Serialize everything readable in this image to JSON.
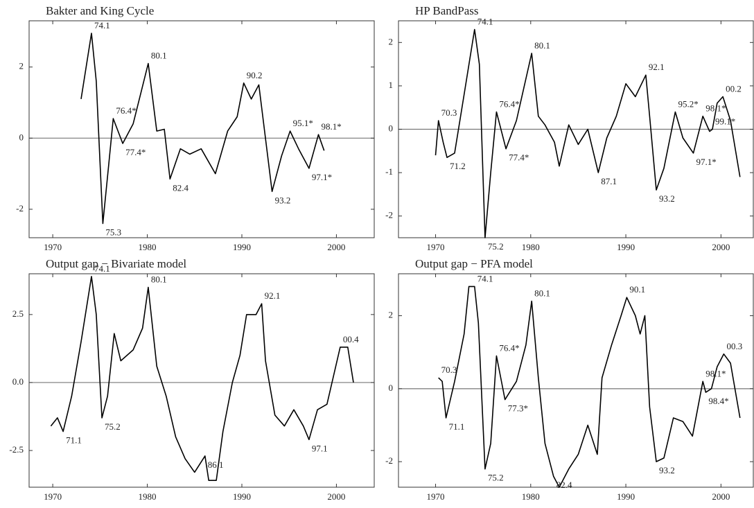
{
  "chart_data": [
    {
      "type": "line",
      "title": "Bakter and King Cycle",
      "color": "#000000",
      "x": [
        1973,
        1974.1,
        1974.6,
        1975.3,
        1975.9,
        1976.4,
        1977.4,
        1978.5,
        1980.1,
        1981,
        1981.8,
        1982.4,
        1983.5,
        1984.5,
        1985.7,
        1987.2,
        1988.5,
        1989.5,
        1990.2,
        1991,
        1991.8,
        1993.2,
        1994.2,
        1995.1,
        1996,
        1997.1,
        1998.1,
        1998.7
      ],
      "values": [
        1.1,
        2.95,
        1.6,
        -2.4,
        -0.8,
        0.55,
        -0.15,
        0.4,
        2.1,
        0.2,
        0.25,
        -1.15,
        -0.3,
        -0.45,
        -0.3,
        -1.0,
        0.2,
        0.6,
        1.55,
        1.1,
        1.5,
        -1.5,
        -0.5,
        0.2,
        -0.3,
        -0.85,
        0.1,
        -0.35
      ],
      "xlim": [
        1967.5,
        2004
      ],
      "ylim": [
        -2.8,
        3.3
      ],
      "xticks": [
        1970,
        1980,
        1990,
        2000
      ],
      "yticks": [
        -2,
        0,
        2
      ],
      "annotations": [
        {
          "text": "74.1",
          "x": 1974.1,
          "y": 2.95
        },
        {
          "text": "75.3",
          "x": 1975.3,
          "y": -2.4
        },
        {
          "text": "76.4*",
          "x": 1976.4,
          "y": 0.55
        },
        {
          "text": "77.4*",
          "x": 1977.4,
          "y": -0.15
        },
        {
          "text": "80.1",
          "x": 1980.1,
          "y": 2.1
        },
        {
          "text": "82.4",
          "x": 1982.4,
          "y": -1.15
        },
        {
          "text": "90.2",
          "x": 1990.2,
          "y": 1.55
        },
        {
          "text": "93.2",
          "x": 1993.2,
          "y": -1.5
        },
        {
          "text": "95.1*",
          "x": 1995.1,
          "y": 0.2
        },
        {
          "text": "97.1*",
          "x": 1997.1,
          "y": -0.85
        },
        {
          "text": "98.1*",
          "x": 1998.1,
          "y": 0.1
        }
      ]
    },
    {
      "type": "line",
      "title": "HP BandPass",
      "color": "#000000",
      "x": [
        1970,
        1970.3,
        1970.8,
        1971.2,
        1972,
        1973,
        1974.1,
        1974.6,
        1975.2,
        1975.8,
        1976.4,
        1977.4,
        1978.5,
        1980.1,
        1980.8,
        1981.5,
        1982.5,
        1983,
        1984,
        1985,
        1986,
        1987.1,
        1988,
        1989,
        1990,
        1991,
        1992.1,
        1992.5,
        1993.2,
        1994,
        1995.2,
        1996,
        1997.1,
        1998.1,
        1998.8,
        1999.1,
        1999.6,
        2000.2,
        2001,
        2002
      ],
      "values": [
        -0.6,
        0.2,
        -0.3,
        -0.65,
        -0.55,
        0.8,
        2.3,
        1.5,
        -2.5,
        -1.0,
        0.4,
        -0.45,
        0.2,
        1.75,
        0.3,
        0.1,
        -0.3,
        -0.85,
        0.1,
        -0.35,
        0.0,
        -1.0,
        -0.2,
        0.3,
        1.05,
        0.75,
        1.25,
        0.3,
        -1.4,
        -0.9,
        0.4,
        -0.2,
        -0.55,
        0.3,
        -0.05,
        0.0,
        0.6,
        0.75,
        0.2,
        -1.1
      ],
      "xlim": [
        1966.1,
        2003.4
      ],
      "ylim": [
        -2.5,
        2.5
      ],
      "xticks": [
        1970,
        1980,
        1990,
        2000
      ],
      "yticks": [
        -2,
        -1,
        0,
        1,
        2
      ],
      "annotations": [
        {
          "text": "70.3",
          "x": 1970.3,
          "y": 0.2
        },
        {
          "text": "71.2",
          "x": 1971.2,
          "y": -0.65
        },
        {
          "text": "74.1",
          "x": 1974.1,
          "y": 2.3
        },
        {
          "text": "75.2",
          "x": 1975.2,
          "y": -2.5
        },
        {
          "text": "76.4*",
          "x": 1976.4,
          "y": 0.4
        },
        {
          "text": "77.4*",
          "x": 1977.4,
          "y": -0.45
        },
        {
          "text": "80.1",
          "x": 1980.1,
          "y": 1.75
        },
        {
          "text": "87.1",
          "x": 1987.1,
          "y": -1.0
        },
        {
          "text": "92.1",
          "x": 1992.1,
          "y": 1.25
        },
        {
          "text": "93.2",
          "x": 1993.2,
          "y": -1.4
        },
        {
          "text": "95.2*",
          "x": 1995.2,
          "y": 0.4
        },
        {
          "text": "97.1*",
          "x": 1997.1,
          "y": -0.55
        },
        {
          "text": "98.1*",
          "x": 1998.1,
          "y": 0.3
        },
        {
          "text": "99.1*",
          "x": 1999.1,
          "y": 0.0
        },
        {
          "text": "00.2",
          "x": 2000.2,
          "y": 0.75
        }
      ]
    },
    {
      "type": "line",
      "title": "Output gap − Bivariate model",
      "color": "#000000",
      "x": [
        1969.8,
        1970.5,
        1971.1,
        1972,
        1973,
        1974.1,
        1974.6,
        1975.2,
        1975.8,
        1976.5,
        1977.2,
        1978.5,
        1979.5,
        1980.1,
        1981,
        1982,
        1983,
        1984,
        1985,
        1986.1,
        1986.5,
        1987.3,
        1988,
        1989,
        1989.8,
        1990.5,
        1991.5,
        1992.1,
        1992.5,
        1993.5,
        1994.5,
        1995.5,
        1996.5,
        1997.1,
        1998,
        1999,
        2000.4,
        2001.2,
        2001.8
      ],
      "values": [
        -1.6,
        -1.3,
        -1.8,
        -0.5,
        1.5,
        3.9,
        2.5,
        -1.3,
        -0.5,
        1.8,
        0.8,
        1.2,
        2.0,
        3.5,
        0.6,
        -0.5,
        -2.0,
        -2.8,
        -3.3,
        -2.7,
        -3.6,
        -3.6,
        -1.8,
        0.0,
        1.0,
        2.5,
        2.5,
        2.9,
        0.8,
        -1.2,
        -1.6,
        -1.0,
        -1.6,
        -2.1,
        -1.0,
        -0.8,
        1.3,
        1.3,
        0.0
      ],
      "xlim": [
        1967.5,
        2004
      ],
      "ylim": [
        -3.85,
        4.0
      ],
      "xticks": [
        1970,
        1980,
        1990,
        2000
      ],
      "yticks": [
        -2.5,
        {
          "value": 0,
          "label": "0.0"
        },
        2.5
      ],
      "annotations": [
        {
          "text": "71.1",
          "x": 1971.1,
          "y": -1.8
        },
        {
          "text": "74.1",
          "x": 1974.1,
          "y": 3.9
        },
        {
          "text": "75.2",
          "x": 1975.2,
          "y": -1.3
        },
        {
          "text": "80.1",
          "x": 1980.1,
          "y": 3.5
        },
        {
          "text": "86.1",
          "x": 1986.1,
          "y": -2.7
        },
        {
          "text": "92.1",
          "x": 1992.1,
          "y": 2.9
        },
        {
          "text": "97.1",
          "x": 1997.1,
          "y": -2.1
        },
        {
          "text": "00.4",
          "x": 2000.4,
          "y": 1.3
        }
      ]
    },
    {
      "type": "line",
      "title": "Output gap − PFA model",
      "color": "#000000",
      "x": [
        1970.3,
        1970.7,
        1971.1,
        1972,
        1973,
        1973.5,
        1974.1,
        1974.5,
        1975.2,
        1975.8,
        1976.4,
        1977.3,
        1978.5,
        1979.5,
        1980.1,
        1980.8,
        1981.5,
        1982.4,
        1983,
        1984,
        1985,
        1986,
        1987,
        1987.5,
        1988.5,
        1989.5,
        1990.1,
        1991,
        1991.5,
        1992,
        1992.5,
        1993.2,
        1994,
        1995,
        1996,
        1997,
        1998.1,
        1998.4,
        1999,
        1999.6,
        2000.3,
        2001,
        2002
      ],
      "values": [
        0.3,
        0.2,
        -0.8,
        0.2,
        1.5,
        2.8,
        2.8,
        1.8,
        -2.2,
        -1.5,
        0.9,
        -0.3,
        0.2,
        1.2,
        2.4,
        0.3,
        -1.5,
        -2.4,
        -2.7,
        -2.2,
        -1.8,
        -1.0,
        -1.8,
        0.3,
        1.2,
        2.0,
        2.5,
        2.0,
        1.5,
        2.0,
        -0.5,
        -2.0,
        -1.9,
        -0.8,
        -0.9,
        -1.3,
        0.2,
        -0.1,
        0.0,
        0.6,
        0.95,
        0.7,
        -0.8
      ],
      "xlim": [
        1966.1,
        2003.4
      ],
      "ylim": [
        -2.7,
        3.15
      ],
      "xticks": [
        1970,
        1980,
        1990,
        2000
      ],
      "yticks": [
        -2,
        0,
        2
      ],
      "annotations": [
        {
          "text": "70.3",
          "x": 1970.3,
          "y": 0.3
        },
        {
          "text": "71.1",
          "x": 1971.1,
          "y": -0.8
        },
        {
          "text": "74.1",
          "x": 1974.1,
          "y": 2.8
        },
        {
          "text": "75.2",
          "x": 1975.2,
          "y": -2.2
        },
        {
          "text": "76.4*",
          "x": 1976.4,
          "y": 0.9
        },
        {
          "text": "77.3*",
          "x": 1977.3,
          "y": -0.3
        },
        {
          "text": "80.1",
          "x": 1980.1,
          "y": 2.4
        },
        {
          "text": "82.4",
          "x": 1982.4,
          "y": -2.4
        },
        {
          "text": "90.1",
          "x": 1990.1,
          "y": 2.5
        },
        {
          "text": "93.2",
          "x": 1993.2,
          "y": -2.0
        },
        {
          "text": "98.1*",
          "x": 1998.1,
          "y": 0.2
        },
        {
          "text": "98.4*",
          "x": 1998.4,
          "y": -0.1
        },
        {
          "text": "00.3",
          "x": 2000.3,
          "y": 0.95
        }
      ]
    }
  ]
}
